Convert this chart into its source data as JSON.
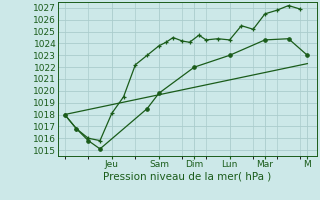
{
  "background_color": "#cce8e8",
  "grid_color": "#aacccc",
  "line_color": "#1a5c1a",
  "ylabel": "Pression niveau de la mer( hPa )",
  "ylim": [
    1014.5,
    1027.5
  ],
  "yticks": [
    1015,
    1016,
    1017,
    1018,
    1019,
    1020,
    1021,
    1022,
    1023,
    1024,
    1025,
    1026,
    1027
  ],
  "day_labels": [
    "Jeu",
    "Sam",
    "Dim",
    "Lun",
    "Mar",
    "M"
  ],
  "day_positions": [
    2.0,
    4.0,
    5.5,
    7.0,
    8.5,
    10.3
  ],
  "xlim": [
    -0.3,
    10.7
  ],
  "series1_x": [
    0.0,
    0.5,
    1.0,
    1.5,
    2.0,
    2.5,
    3.0,
    3.5,
    4.0,
    4.3,
    4.6,
    5.0,
    5.3,
    5.7,
    6.0,
    6.5,
    7.0,
    7.5,
    8.0,
    8.5,
    9.0,
    9.5,
    10.0
  ],
  "series1_y": [
    1018.0,
    1016.8,
    1016.0,
    1015.8,
    1018.1,
    1019.5,
    1022.2,
    1023.0,
    1023.8,
    1024.1,
    1024.5,
    1024.2,
    1024.1,
    1024.7,
    1024.3,
    1024.4,
    1024.3,
    1025.5,
    1025.2,
    1026.5,
    1026.8,
    1027.2,
    1026.9
  ],
  "series2_x": [
    0.0,
    0.5,
    1.0,
    1.5,
    3.5,
    4.0,
    5.5,
    7.0,
    8.5,
    9.5,
    10.3
  ],
  "series2_y": [
    1018.0,
    1016.8,
    1015.8,
    1015.1,
    1018.5,
    1019.8,
    1022.0,
    1023.0,
    1024.3,
    1024.4,
    1023.0
  ],
  "series3_x": [
    0.0,
    10.3
  ],
  "series3_y": [
    1018.0,
    1022.3
  ]
}
